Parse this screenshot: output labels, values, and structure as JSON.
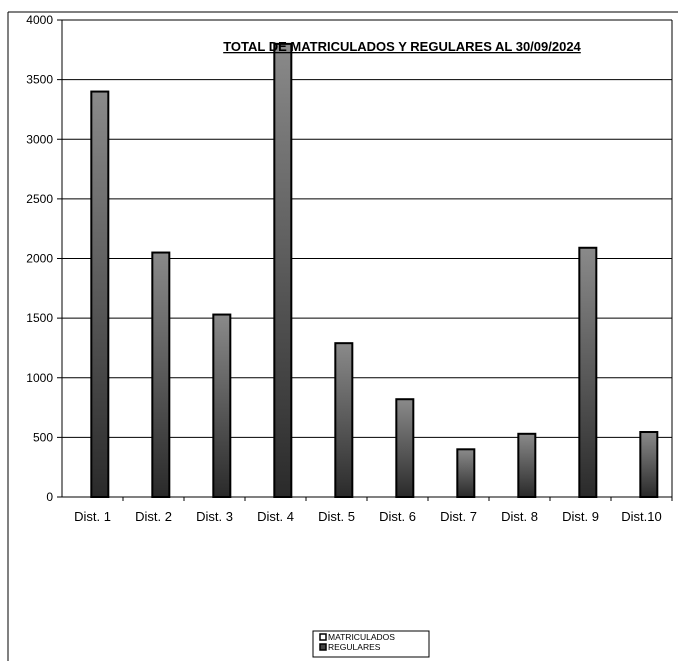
{
  "chart_data": {
    "type": "bar",
    "title": "TOTAL DE MATRICULADOS Y REGULARES AL 30/09/2024",
    "categories": [
      "Dist. 1",
      "Dist. 2",
      "Dist. 3",
      "Dist. 4",
      "Dist. 5",
      "Dist. 6",
      "Dist. 7",
      "Dist. 8",
      "Dist. 9",
      "Dist.10"
    ],
    "series": [
      {
        "name": "MATRICULADOS",
        "values": [
          3400,
          2050,
          1530,
          3800,
          1290,
          820,
          400,
          530,
          2090,
          545
        ]
      },
      {
        "name": "REGULARES",
        "values": [
          null,
          null,
          null,
          null,
          null,
          null,
          null,
          null,
          null,
          null
        ]
      }
    ],
    "ylim": [
      0,
      4000
    ],
    "yticks": [
      0,
      500,
      1000,
      1500,
      2000,
      2500,
      3000,
      3500,
      4000
    ],
    "xlabel": "",
    "ylabel": "",
    "grid": true,
    "legend_position": "bottom",
    "colors": {
      "bar_light": "#8a8a8a",
      "bar_dark": "#2a2a2a",
      "grid": "#000000",
      "frame": "#000000"
    }
  }
}
